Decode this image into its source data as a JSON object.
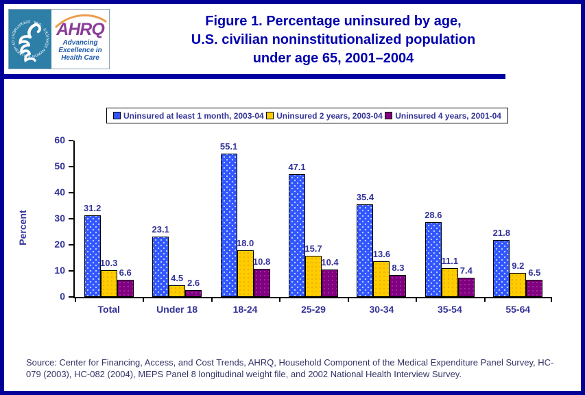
{
  "header": {
    "logo": {
      "seal_ring_text": "DEPARTMENT OF HEALTH & HUMAN SERVICES · USA",
      "wordmark": "AHRQ",
      "tagline_line1": "Advancing",
      "tagline_line2": "Excellence in",
      "tagline_line3": "Health Care"
    },
    "title_lines": [
      "Figure 1. Percentage uninsured by age,",
      "U.S. civilian noninstitutionalized population",
      "under age 65, 2001–2004"
    ]
  },
  "colors": {
    "frame_border": "#000099",
    "title_text": "#0000ae",
    "axis_text": "#333399",
    "source_text": "#333366",
    "series_blue": "#3355ff",
    "series_yellow": "#ffcc00",
    "series_purple": "#800080"
  },
  "chart_data": {
    "type": "bar",
    "categories": [
      "Total",
      "Under 18",
      "18-24",
      "25-29",
      "30-34",
      "35-54",
      "55-64"
    ],
    "series": [
      {
        "name": "Uninsured at least 1 month, 2003-04",
        "color": "#3355ff",
        "values": [
          31.2,
          23.1,
          55.1,
          47.1,
          35.4,
          28.6,
          21.8
        ]
      },
      {
        "name": "Uninsured 2 years, 2003-04",
        "color": "#ffcc00",
        "values": [
          10.3,
          4.5,
          18.0,
          15.7,
          13.6,
          11.1,
          9.2
        ]
      },
      {
        "name": "Uninsured 4 years, 2001-04",
        "color": "#800080",
        "values": [
          6.6,
          2.6,
          10.8,
          10.4,
          8.3,
          7.4,
          6.5
        ]
      }
    ],
    "title": "Figure 1. Percentage uninsured by age, U.S. civilian noninstitutionalized population under age 65, 2001–2004",
    "xlabel": "",
    "ylabel": "Percent",
    "ylim": [
      0,
      60
    ],
    "yticks": [
      0,
      10,
      20,
      30,
      40,
      50,
      60
    ],
    "grid": false,
    "legend_position": "top",
    "value_labels_decimals": 1
  },
  "source": {
    "text": "Source: Center for Financing, Access, and Cost Trends, AHRQ, Household Component of the Medical Expenditure Panel Survey, HC-079 (2003), HC-082 (2004), MEPS Panel 8 longitudinal weight file, and 2002 National Health Interview Survey."
  }
}
